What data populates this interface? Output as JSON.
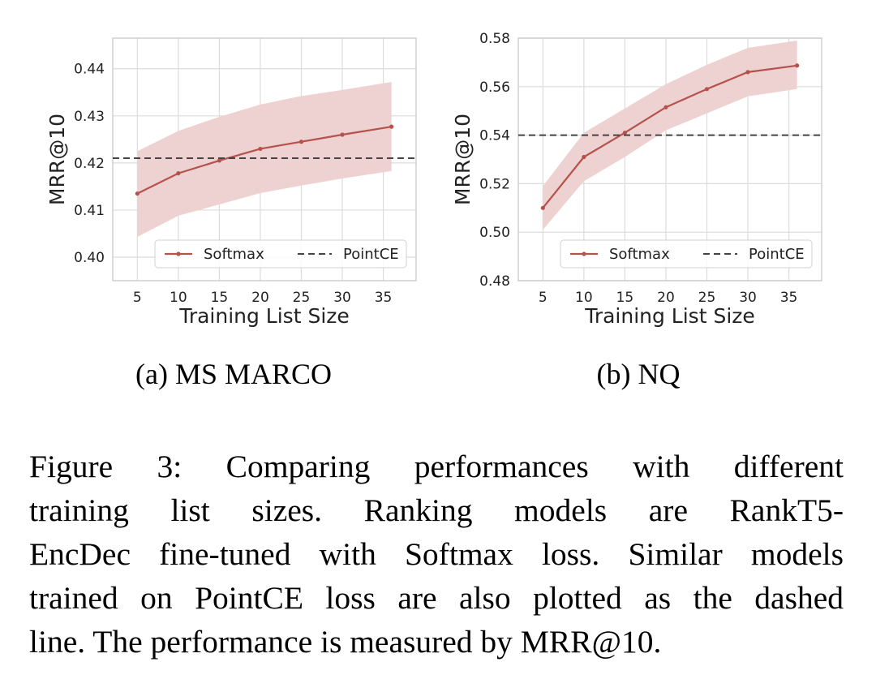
{
  "chart_data": [
    {
      "type": "line",
      "subcaption": "(a)  MS MARCO",
      "xlabel": "Training List Size",
      "ylabel": "MRR@10",
      "x": [
        5,
        10,
        15,
        20,
        25,
        30,
        35
      ],
      "xlim": [
        2,
        39
      ],
      "ylim": [
        0.395,
        0.4465
      ],
      "yticks": [
        "0.40",
        "0.41",
        "0.42",
        "0.43",
        "0.44"
      ],
      "yticks_values": [
        0.4,
        0.41,
        0.42,
        0.43,
        0.44
      ],
      "grid": true,
      "legend_position": "bottom",
      "series": [
        {
          "name": "Softmax",
          "x": [
            5,
            10,
            15,
            20,
            25,
            30,
            36
          ],
          "values": [
            0.4135,
            0.4178,
            0.4205,
            0.423,
            0.4245,
            0.426,
            0.4277
          ],
          "band_upper": [
            0.4225,
            0.4268,
            0.4298,
            0.4324,
            0.4342,
            0.4355,
            0.4372
          ],
          "band_lower": [
            0.4043,
            0.4088,
            0.4112,
            0.4136,
            0.4152,
            0.4167,
            0.4183
          ],
          "color": "#b5524d",
          "band_color": "#eed1d1",
          "style": "solid"
        },
        {
          "name": "PointCE",
          "x": [
            2,
            39
          ],
          "values": [
            0.421,
            0.421
          ],
          "color": "#444444",
          "style": "dashed"
        }
      ]
    },
    {
      "type": "line",
      "subcaption": "(b)  NQ",
      "xlabel": "Training List Size",
      "ylabel": "MRR@10",
      "x": [
        5,
        10,
        15,
        20,
        25,
        30,
        35
      ],
      "xlim": [
        2,
        39
      ],
      "ylim": [
        0.48,
        0.58
      ],
      "yticks": [
        "0.48",
        "0.50",
        "0.52",
        "0.54",
        "0.56",
        "0.58"
      ],
      "yticks_values": [
        0.48,
        0.5,
        0.52,
        0.54,
        0.56,
        0.58
      ],
      "grid": true,
      "legend_position": "bottom",
      "series": [
        {
          "name": "Softmax",
          "x": [
            5,
            10,
            15,
            20,
            25,
            30,
            36
          ],
          "values": [
            0.51,
            0.531,
            0.541,
            0.5515,
            0.559,
            0.566,
            0.5687
          ],
          "band_upper": [
            0.519,
            0.541,
            0.551,
            0.561,
            0.569,
            0.576,
            0.579
          ],
          "band_lower": [
            0.501,
            0.521,
            0.531,
            0.542,
            0.549,
            0.556,
            0.559
          ],
          "color": "#b5524d",
          "band_color": "#eed1d1",
          "style": "solid"
        },
        {
          "name": "PointCE",
          "x": [
            2,
            39
          ],
          "values": [
            0.54,
            0.54
          ],
          "color": "#444444",
          "style": "dashed"
        }
      ]
    }
  ],
  "caption_lines": [
    "Figure 3:   Comparing performances with different",
    "training list sizes.   Ranking models are RankT5-",
    "EncDec fine-tuned with Softmax loss. Similar models",
    "trained on PointCE loss are also plotted as the dashed",
    "line. The performance is measured by MRR@10."
  ]
}
